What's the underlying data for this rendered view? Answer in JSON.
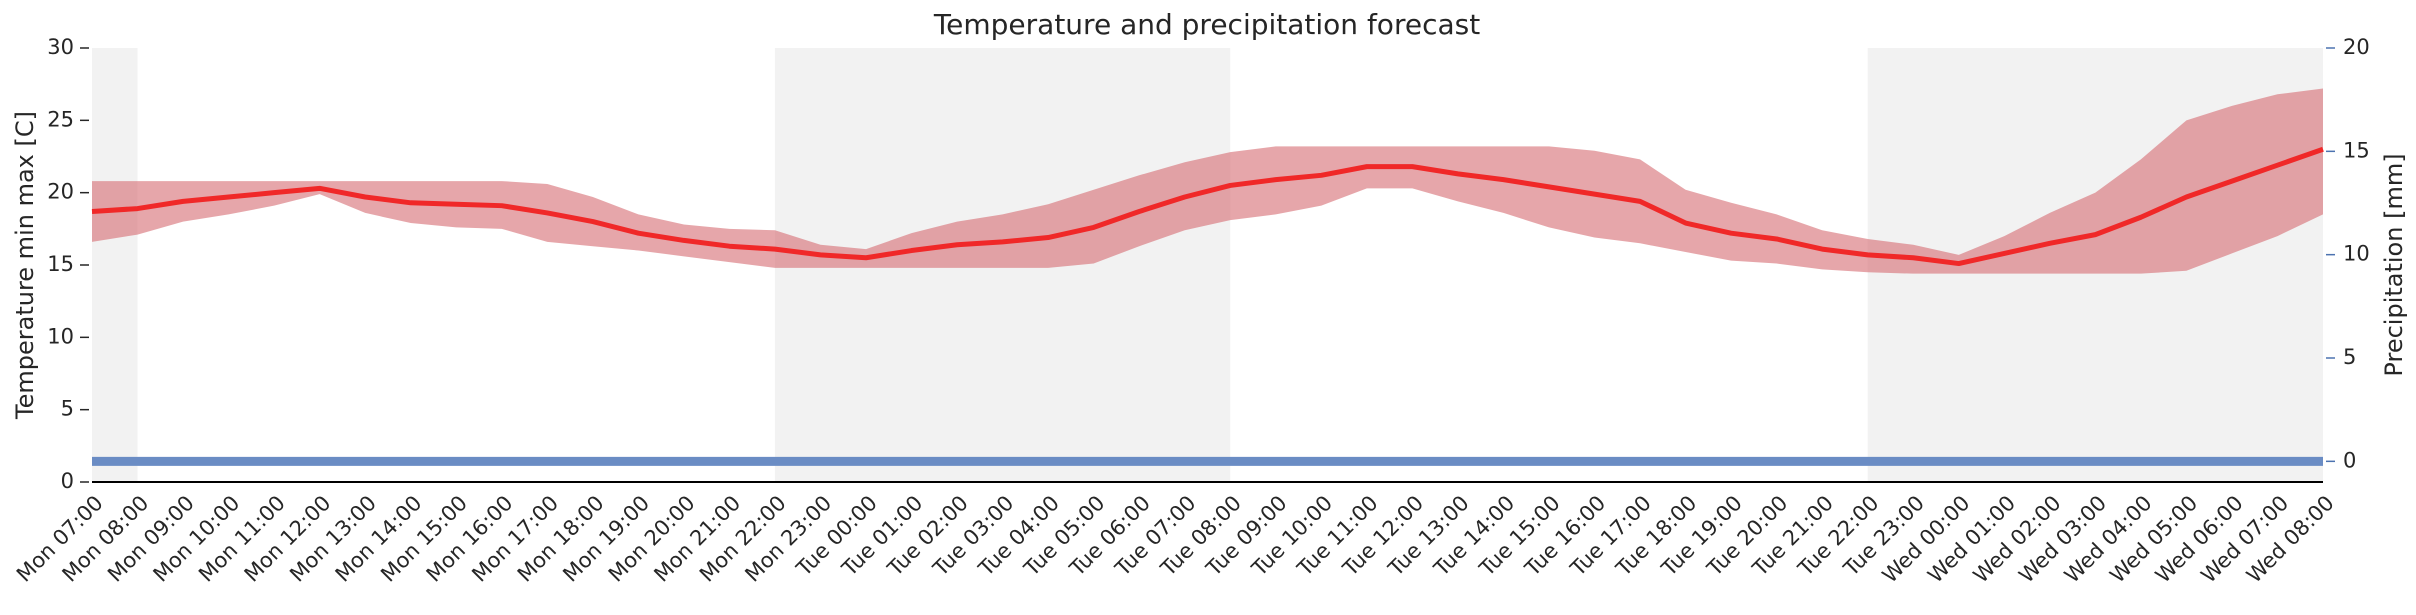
{
  "chart_data": {
    "type": "line",
    "title": "Temperature and precipitation forecast",
    "ylabel": "Temperature min max [C]",
    "y2label": "Precipitation [mm]",
    "categories": [
      "Mon 07:00",
      "Mon 08:00",
      "Mon 09:00",
      "Mon 10:00",
      "Mon 11:00",
      "Mon 12:00",
      "Mon 13:00",
      "Mon 14:00",
      "Mon 15:00",
      "Mon 16:00",
      "Mon 17:00",
      "Mon 18:00",
      "Mon 19:00",
      "Mon 20:00",
      "Mon 21:00",
      "Mon 22:00",
      "Mon 23:00",
      "Tue 00:00",
      "Tue 01:00",
      "Tue 02:00",
      "Tue 03:00",
      "Tue 04:00",
      "Tue 05:00",
      "Tue 06:00",
      "Tue 07:00",
      "Tue 08:00",
      "Tue 09:00",
      "Tue 10:00",
      "Tue 11:00",
      "Tue 12:00",
      "Tue 13:00",
      "Tue 14:00",
      "Tue 15:00",
      "Tue 16:00",
      "Tue 17:00",
      "Tue 18:00",
      "Tue 19:00",
      "Tue 20:00",
      "Tue 21:00",
      "Tue 22:00",
      "Tue 23:00",
      "Wed 00:00",
      "Wed 01:00",
      "Wed 02:00",
      "Wed 03:00",
      "Wed 04:00",
      "Wed 05:00",
      "Wed 06:00",
      "Wed 07:00",
      "Wed 08:00"
    ],
    "series": [
      {
        "color": "#f02828",
        "values": [
          18.7,
          18.9,
          19.4,
          19.7,
          20.0,
          20.3,
          19.7,
          19.3,
          19.2,
          19.1,
          18.6,
          18.0,
          17.2,
          16.7,
          16.3,
          16.1,
          15.7,
          15.5,
          16.0,
          16.4,
          16.6,
          16.9,
          17.6,
          18.7,
          19.7,
          20.5,
          20.9,
          21.2,
          21.8,
          21.8,
          21.3,
          20.9,
          20.4,
          19.9,
          19.4,
          17.9,
          17.2,
          16.8,
          16.1,
          15.7,
          15.5,
          15.1,
          15.8,
          16.5,
          17.1,
          18.3,
          19.7,
          20.8,
          21.9,
          23.0
        ]
      },
      {
        "color": "#6a8cc4",
        "axis": "y2",
        "values": [
          0,
          0,
          0,
          0,
          0,
          0,
          0,
          0,
          0,
          0,
          0,
          0,
          0,
          0,
          0,
          0,
          0,
          0,
          0,
          0,
          0,
          0,
          0,
          0,
          0,
          0,
          0,
          0,
          0,
          0,
          0,
          0,
          0,
          0,
          0,
          0,
          0,
          0,
          0,
          0,
          0,
          0,
          0,
          0,
          0,
          0,
          0,
          0,
          0,
          0
        ]
      }
    ],
    "band": {
      "color": "#d66a72",
      "lower": [
        16.6,
        17.1,
        18.0,
        18.5,
        19.1,
        19.9,
        18.6,
        17.9,
        17.6,
        17.5,
        16.6,
        16.3,
        16.0,
        15.6,
        15.2,
        14.8,
        14.8,
        14.8,
        14.8,
        14.8,
        14.8,
        14.8,
        15.1,
        16.3,
        17.4,
        18.1,
        18.5,
        19.1,
        20.3,
        20.3,
        19.4,
        18.6,
        17.6,
        16.9,
        16.5,
        15.9,
        15.3,
        15.1,
        14.7,
        14.5,
        14.4,
        14.4,
        14.4,
        14.4,
        14.4,
        14.4,
        14.6,
        15.8,
        17.0,
        18.5
      ],
      "upper": [
        20.8,
        20.8,
        20.8,
        20.8,
        20.8,
        20.8,
        20.8,
        20.8,
        20.8,
        20.8,
        20.6,
        19.7,
        18.5,
        17.8,
        17.5,
        17.4,
        16.4,
        16.1,
        17.2,
        18.0,
        18.5,
        19.2,
        20.2,
        21.2,
        22.1,
        22.8,
        23.2,
        23.2,
        23.2,
        23.2,
        23.2,
        23.2,
        23.2,
        22.9,
        22.3,
        20.2,
        19.3,
        18.5,
        17.4,
        16.8,
        16.4,
        15.7,
        17.0,
        18.6,
        20.0,
        22.3,
        25.0,
        26.0,
        26.8,
        27.2
      ]
    },
    "shaded_spans": [
      [
        0,
        1
      ],
      [
        15,
        25
      ],
      [
        39,
        49
      ]
    ],
    "ylim": [
      0,
      30
    ],
    "yticks": [
      0,
      5,
      10,
      15,
      20,
      25,
      30
    ],
    "y2lim": [
      -1,
      20
    ],
    "y2ticks": [
      0,
      5,
      10,
      15,
      20
    ],
    "y2color": "#4c72b0"
  }
}
